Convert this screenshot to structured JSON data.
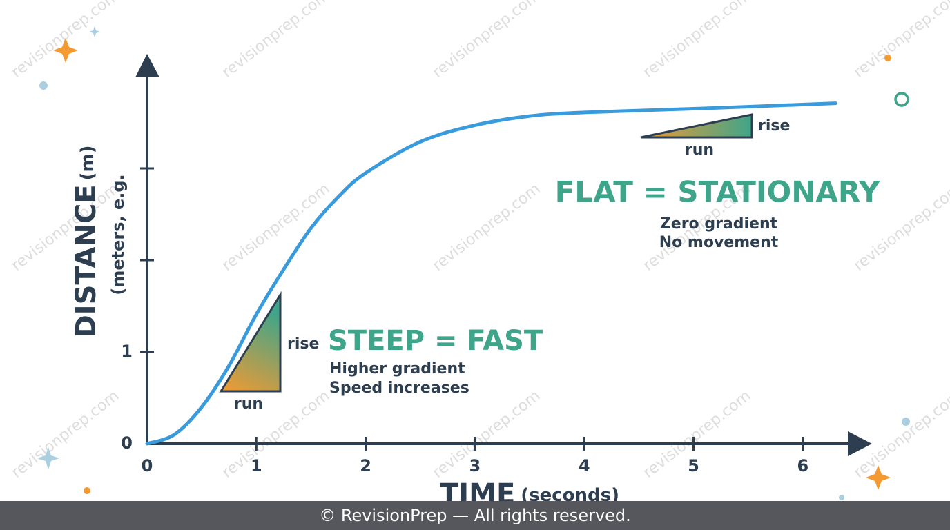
{
  "chart_data": {
    "type": "line",
    "y_label": "DISTANCE",
    "y_unit": "(m)",
    "y_sublabel": "(meters, e.g.",
    "x_label": "TIME",
    "x_unit": "(seconds)",
    "x": [
      0,
      0.25,
      0.5,
      0.75,
      1,
      1.25,
      1.5,
      1.75,
      2,
      2.5,
      3,
      3.5,
      4,
      5,
      6.3
    ],
    "values": [
      0,
      0.1,
      0.4,
      0.85,
      1.41,
      1.9,
      2.35,
      2.69,
      2.95,
      3.29,
      3.47,
      3.57,
      3.61,
      3.65,
      3.71
    ],
    "color": "#3a9bdc",
    "xlim": [
      0,
      6.6
    ],
    "ylim": [
      0,
      4.25
    ],
    "xticks": [
      0,
      1,
      2,
      3,
      4,
      5,
      6
    ],
    "yticks": [
      0,
      1,
      {
        "value": 2,
        "label": null
      },
      {
        "value": 3,
        "label": null
      }
    ],
    "annotations": {
      "steep_title": "STEEP = FAST",
      "steep_line1": "Higher gradient",
      "steep_line2": "Speed increases",
      "steep_rise": "rise",
      "steep_run": "run",
      "flat_title": "FLAT = STATIONARY",
      "flat_line1": "Zero gradient",
      "flat_line2": "No movement",
      "flat_rise": "rise",
      "flat_run": "run"
    },
    "watermark": "revisionprep.com",
    "footer": "© RevisionPrep — All rights reserved."
  }
}
